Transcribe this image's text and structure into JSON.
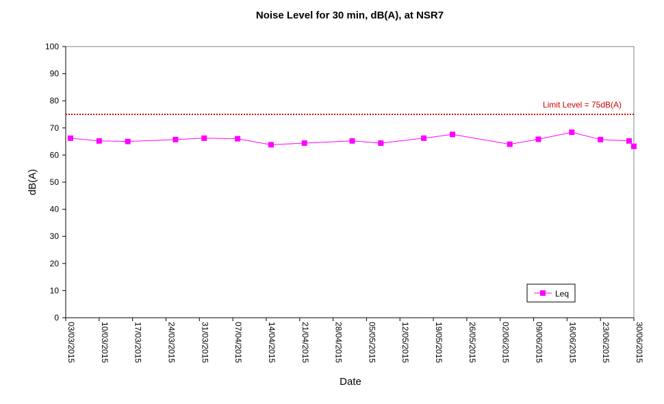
{
  "chart_data": {
    "type": "line",
    "title": "Noise Level for 30 min, dB(A), at NSR7",
    "xlabel": "Date",
    "ylabel": "dB(A)",
    "ylim": [
      0,
      100
    ],
    "yticks": [
      0,
      10,
      20,
      30,
      40,
      50,
      60,
      70,
      80,
      90,
      100
    ],
    "x_ticks": [
      "03/03/2015",
      "10/03/2015",
      "17/03/2015",
      "24/03/2015",
      "31/03/2015",
      "07/04/2015",
      "14/04/2015",
      "21/04/2015",
      "28/04/2015",
      "05/05/2015",
      "12/05/2015",
      "19/05/2015",
      "26/05/2015",
      "02/06/2015",
      "09/06/2015",
      "16/06/2015",
      "23/06/2015",
      "30/06/2015"
    ],
    "xlim": [
      "03/03/2015",
      "30/06/2015"
    ],
    "grid": false,
    "legend_position": "bottom-right",
    "series": [
      {
        "name": "Leq",
        "color": "#ff00ff",
        "marker": "square",
        "x": [
          "04/03/2015",
          "10/03/2015",
          "16/03/2015",
          "26/03/2015",
          "01/04/2015",
          "08/04/2015",
          "15/04/2015",
          "22/04/2015",
          "02/05/2015",
          "08/05/2015",
          "17/05/2015",
          "23/05/2015",
          "04/06/2015",
          "10/06/2015",
          "17/06/2015",
          "23/06/2015",
          "29/06/2015",
          "30/06/2015"
        ],
        "values": [
          66.2,
          65.2,
          65.0,
          65.7,
          66.2,
          66.0,
          63.8,
          64.4,
          65.2,
          64.4,
          66.2,
          67.6,
          64.0,
          65.8,
          68.4,
          65.7,
          65.2,
          63.2
        ]
      }
    ],
    "reference_line": {
      "value": 75,
      "label": "Limit Level  = 75dB(A)",
      "color": "#cc0000",
      "style": "dotted"
    }
  }
}
